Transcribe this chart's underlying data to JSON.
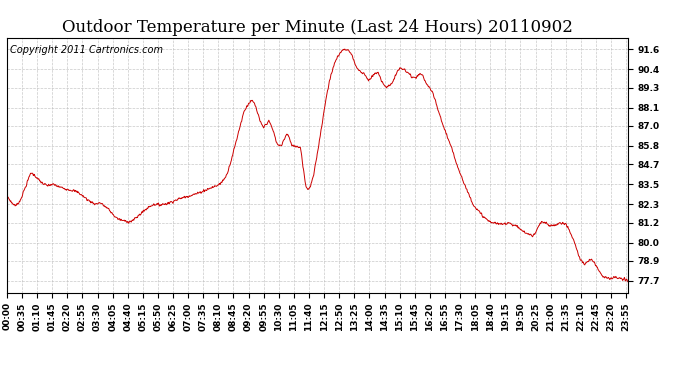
{
  "title": "Outdoor Temperature per Minute (Last 24 Hours) 20110902",
  "copyright_text": "Copyright 2011 Cartronics.com",
  "background_color": "#ffffff",
  "plot_background_color": "#ffffff",
  "line_color": "#cc0000",
  "grid_color": "#bbbbbb",
  "y_ticks": [
    77.7,
    78.9,
    80.0,
    81.2,
    82.3,
    83.5,
    84.7,
    85.8,
    87.0,
    88.1,
    89.3,
    90.4,
    91.6
  ],
  "x_tick_labels": [
    "00:00",
    "00:35",
    "01:10",
    "01:45",
    "02:20",
    "02:55",
    "03:30",
    "04:05",
    "04:40",
    "05:15",
    "05:50",
    "06:25",
    "07:00",
    "07:35",
    "08:10",
    "08:45",
    "09:20",
    "09:55",
    "10:30",
    "11:05",
    "11:40",
    "12:15",
    "12:50",
    "13:25",
    "14:00",
    "14:35",
    "15:10",
    "15:45",
    "16:20",
    "16:55",
    "17:30",
    "18:05",
    "18:40",
    "19:15",
    "19:50",
    "20:25",
    "21:00",
    "21:35",
    "22:10",
    "22:45",
    "23:20",
    "23:55"
  ],
  "ylim": [
    77.0,
    92.3
  ],
  "xlim": [
    0,
    1439
  ],
  "title_fontsize": 12,
  "tick_fontsize": 6.5,
  "copyright_fontsize": 7,
  "keypoints": [
    [
      0,
      82.8
    ],
    [
      10,
      82.4
    ],
    [
      20,
      82.2
    ],
    [
      30,
      82.5
    ],
    [
      45,
      83.5
    ],
    [
      55,
      84.2
    ],
    [
      65,
      84.0
    ],
    [
      75,
      83.7
    ],
    [
      85,
      83.5
    ],
    [
      95,
      83.4
    ],
    [
      105,
      83.5
    ],
    [
      115,
      83.4
    ],
    [
      125,
      83.3
    ],
    [
      140,
      83.2
    ],
    [
      155,
      83.1
    ],
    [
      165,
      83.0
    ],
    [
      175,
      82.8
    ],
    [
      190,
      82.5
    ],
    [
      205,
      82.3
    ],
    [
      215,
      82.4
    ],
    [
      225,
      82.2
    ],
    [
      235,
      82.0
    ],
    [
      248,
      81.6
    ],
    [
      258,
      81.4
    ],
    [
      270,
      81.3
    ],
    [
      282,
      81.25
    ],
    [
      290,
      81.3
    ],
    [
      300,
      81.5
    ],
    [
      312,
      81.8
    ],
    [
      322,
      82.0
    ],
    [
      332,
      82.2
    ],
    [
      342,
      82.3
    ],
    [
      352,
      82.25
    ],
    [
      362,
      82.3
    ],
    [
      372,
      82.35
    ],
    [
      382,
      82.45
    ],
    [
      392,
      82.55
    ],
    [
      402,
      82.65
    ],
    [
      415,
      82.75
    ],
    [
      428,
      82.85
    ],
    [
      442,
      82.95
    ],
    [
      455,
      83.1
    ],
    [
      465,
      83.2
    ],
    [
      475,
      83.3
    ],
    [
      485,
      83.4
    ],
    [
      495,
      83.55
    ],
    [
      508,
      84.0
    ],
    [
      520,
      85.0
    ],
    [
      530,
      86.0
    ],
    [
      540,
      87.0
    ],
    [
      548,
      87.8
    ],
    [
      556,
      88.2
    ],
    [
      562,
      88.4
    ],
    [
      568,
      88.5
    ],
    [
      574,
      88.3
    ],
    [
      580,
      87.8
    ],
    [
      587,
      87.2
    ],
    [
      594,
      86.9
    ],
    [
      600,
      87.1
    ],
    [
      606,
      87.3
    ],
    [
      612,
      87.0
    ],
    [
      618,
      86.6
    ],
    [
      624,
      86.0
    ],
    [
      630,
      85.8
    ],
    [
      636,
      85.85
    ],
    [
      642,
      86.2
    ],
    [
      648,
      86.5
    ],
    [
      652,
      86.4
    ],
    [
      657,
      86.0
    ],
    [
      662,
      85.8
    ],
    [
      668,
      85.8
    ],
    [
      674,
      85.75
    ],
    [
      680,
      85.7
    ],
    [
      686,
      84.5
    ],
    [
      692,
      83.4
    ],
    [
      697,
      83.2
    ],
    [
      702,
      83.3
    ],
    [
      710,
      84.0
    ],
    [
      718,
      85.2
    ],
    [
      726,
      86.5
    ],
    [
      735,
      88.0
    ],
    [
      743,
      89.2
    ],
    [
      750,
      90.0
    ],
    [
      758,
      90.7
    ],
    [
      765,
      91.1
    ],
    [
      772,
      91.4
    ],
    [
      778,
      91.55
    ],
    [
      784,
      91.6
    ],
    [
      790,
      91.55
    ],
    [
      795,
      91.4
    ],
    [
      800,
      91.2
    ],
    [
      805,
      90.8
    ],
    [
      810,
      90.5
    ],
    [
      816,
      90.3
    ],
    [
      822,
      90.2
    ],
    [
      828,
      90.15
    ],
    [
      833,
      89.9
    ],
    [
      838,
      89.7
    ],
    [
      843,
      89.85
    ],
    [
      848,
      90.0
    ],
    [
      853,
      90.15
    ],
    [
      858,
      90.2
    ],
    [
      863,
      90.0
    ],
    [
      868,
      89.7
    ],
    [
      873,
      89.5
    ],
    [
      878,
      89.3
    ],
    [
      883,
      89.35
    ],
    [
      888,
      89.5
    ],
    [
      893,
      89.6
    ],
    [
      898,
      89.9
    ],
    [
      903,
      90.2
    ],
    [
      908,
      90.4
    ],
    [
      913,
      90.45
    ],
    [
      918,
      90.4
    ],
    [
      923,
      90.3
    ],
    [
      928,
      90.2
    ],
    [
      933,
      90.1
    ],
    [
      938,
      89.9
    ],
    [
      943,
      89.85
    ],
    [
      948,
      89.9
    ],
    [
      953,
      90.05
    ],
    [
      958,
      90.1
    ],
    [
      963,
      90.0
    ],
    [
      968,
      89.7
    ],
    [
      973,
      89.5
    ],
    [
      978,
      89.3
    ],
    [
      983,
      89.1
    ],
    [
      990,
      88.7
    ],
    [
      998,
      88.0
    ],
    [
      1008,
      87.2
    ],
    [
      1018,
      86.5
    ],
    [
      1028,
      85.8
    ],
    [
      1038,
      85.0
    ],
    [
      1048,
      84.3
    ],
    [
      1058,
      83.6
    ],
    [
      1068,
      83.0
    ],
    [
      1078,
      82.4
    ],
    [
      1088,
      82.0
    ],
    [
      1095,
      81.8
    ],
    [
      1102,
      81.6
    ],
    [
      1110,
      81.4
    ],
    [
      1118,
      81.25
    ],
    [
      1125,
      81.2
    ],
    [
      1132,
      81.15
    ],
    [
      1140,
      81.1
    ],
    [
      1148,
      81.1
    ],
    [
      1155,
      81.15
    ],
    [
      1162,
      81.2
    ],
    [
      1170,
      81.1
    ],
    [
      1178,
      81.0
    ],
    [
      1185,
      80.9
    ],
    [
      1192,
      80.75
    ],
    [
      1200,
      80.6
    ],
    [
      1208,
      80.5
    ],
    [
      1218,
      80.4
    ],
    [
      1225,
      80.6
    ],
    [
      1232,
      81.0
    ],
    [
      1238,
      81.2
    ],
    [
      1244,
      81.2
    ],
    [
      1250,
      81.15
    ],
    [
      1256,
      81.0
    ],
    [
      1262,
      81.0
    ],
    [
      1268,
      81.05
    ],
    [
      1275,
      81.1
    ],
    [
      1282,
      81.15
    ],
    [
      1288,
      81.2
    ],
    [
      1294,
      81.1
    ],
    [
      1300,
      80.9
    ],
    [
      1308,
      80.4
    ],
    [
      1315,
      80.0
    ],
    [
      1320,
      79.6
    ],
    [
      1325,
      79.2
    ],
    [
      1330,
      78.9
    ],
    [
      1338,
      78.7
    ],
    [
      1345,
      78.8
    ],
    [
      1350,
      79.0
    ],
    [
      1355,
      78.95
    ],
    [
      1360,
      78.85
    ],
    [
      1365,
      78.6
    ],
    [
      1372,
      78.3
    ],
    [
      1380,
      78.0
    ],
    [
      1388,
      77.9
    ],
    [
      1395,
      77.85
    ],
    [
      1402,
      77.85
    ],
    [
      1410,
      77.9
    ],
    [
      1418,
      77.85
    ],
    [
      1426,
      77.8
    ],
    [
      1433,
      77.75
    ],
    [
      1439,
      77.7
    ]
  ]
}
